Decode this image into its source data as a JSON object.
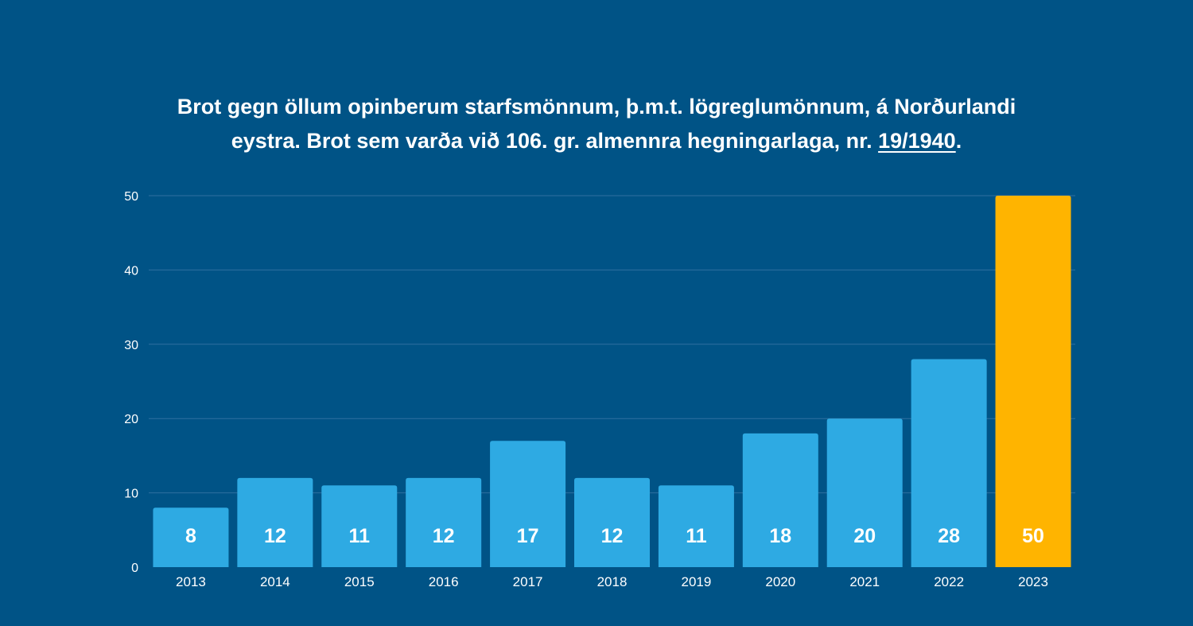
{
  "title": {
    "line1": "Brot gegn öllum opinberum starfsmönnum, þ.m.t. lögreglumönnum, á Norðurlandi",
    "line2_prefix": "eystra. Brot sem varða við 106. gr. almennra hegningarlaga, nr. ",
    "line2_ref": "19/1940",
    "line2_suffix": "."
  },
  "colors": {
    "background": "#005386",
    "bar": "#2EAAE3",
    "highlight": "#FFB400",
    "grid": "#2F6FA0",
    "text": "#FFFFFF"
  },
  "chart_data": {
    "type": "bar",
    "title": "Brot gegn öllum opinberum starfsmönnum, þ.m.t. lögreglumönnum, á Norðurlandi eystra. Brot sem varða við 106. gr. almennra hegningarlaga, nr. 19/1940.",
    "categories": [
      "2013",
      "2014",
      "2015",
      "2016",
      "2017",
      "2018",
      "2019",
      "2020",
      "2021",
      "2022",
      "2023"
    ],
    "values": [
      8,
      12,
      11,
      12,
      17,
      12,
      11,
      18,
      20,
      28,
      50
    ],
    "highlight_index": 10,
    "xlabel": "",
    "ylabel": "",
    "ylim": [
      0,
      50
    ],
    "yticks": [
      0,
      10,
      20,
      30,
      40,
      50
    ],
    "grid": true,
    "data_labels": true
  }
}
